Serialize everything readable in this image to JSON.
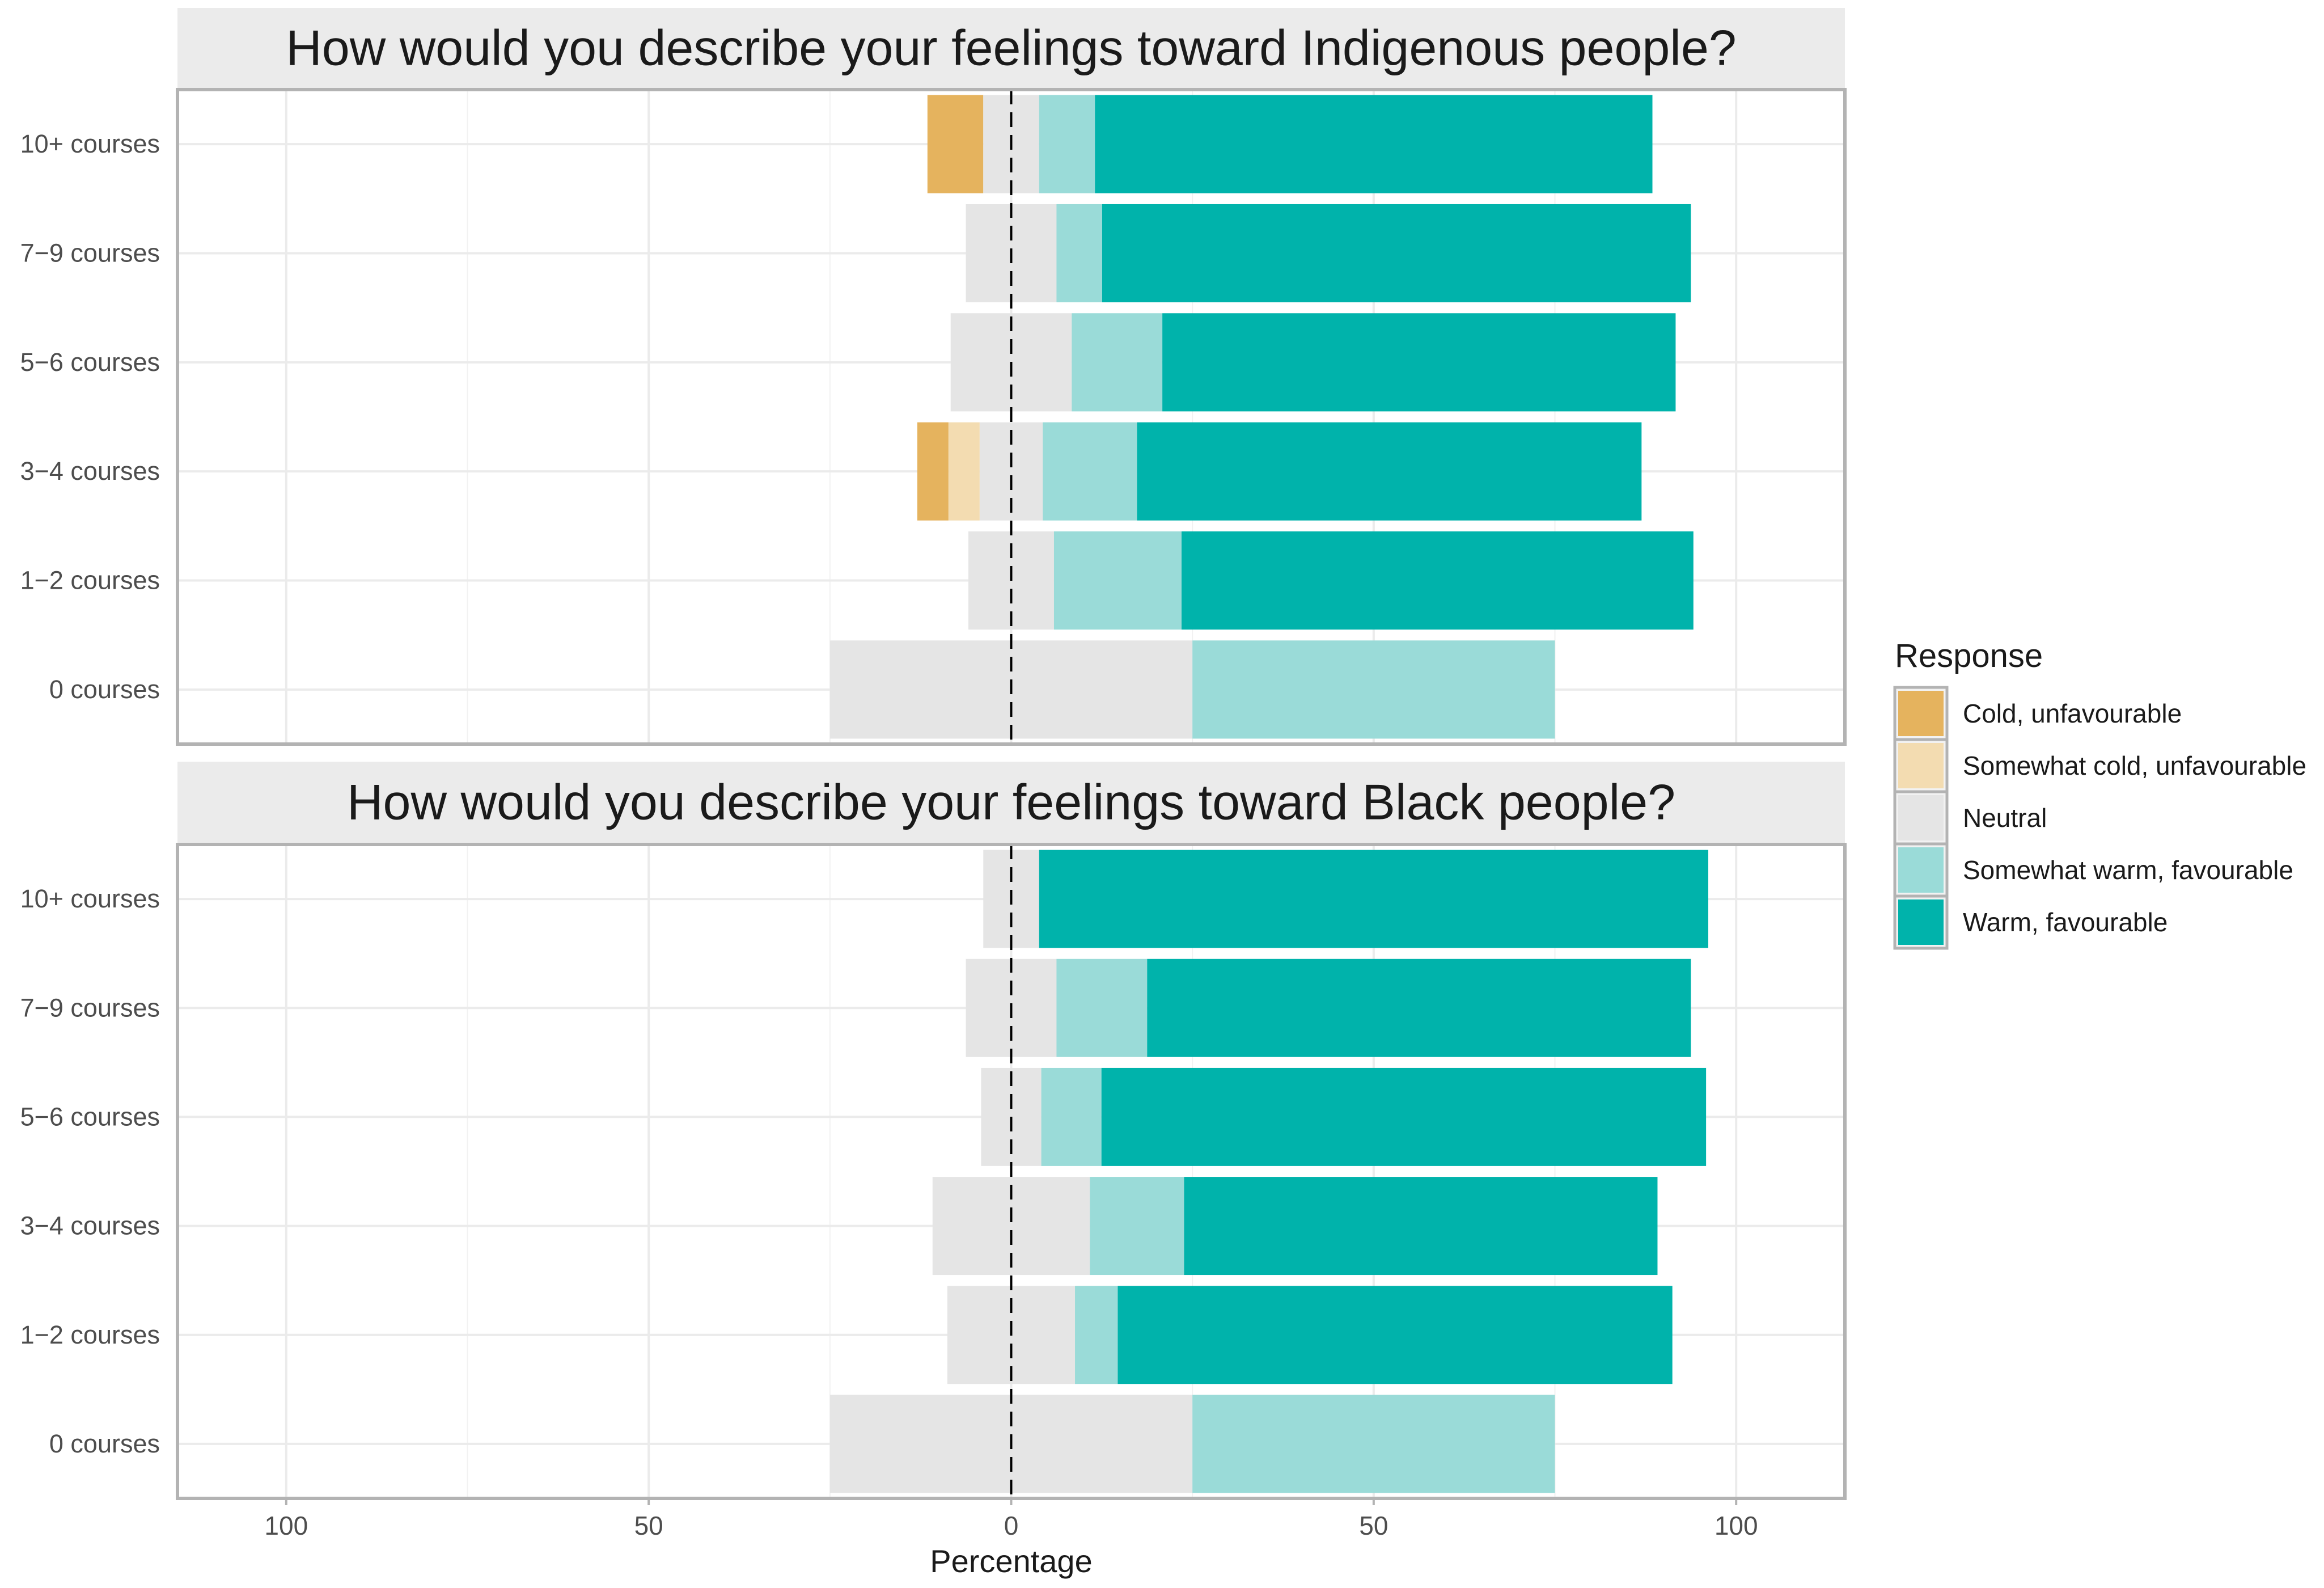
{
  "chart_data": {
    "type": "bar",
    "orientation": "horizontal",
    "stacked": "diverging",
    "xlabel": "Percentage",
    "xlim": [
      -115,
      115
    ],
    "x_ticks": [
      -100,
      -50,
      0,
      50,
      100
    ],
    "x_tick_labels": [
      "100",
      "50",
      "0",
      "50",
      "100"
    ],
    "grid": true,
    "legend": {
      "title": "Response",
      "placement": "right",
      "entries": [
        {
          "label": "Cold, unfavourable",
          "color": "#E5B35E"
        },
        {
          "label": "Somewhat cold, unfavourable",
          "color": "#F3DCB1"
        },
        {
          "label": "Neutral",
          "color": "#E5E5E5"
        },
        {
          "label": "Somewhat warm, favourable",
          "color": "#9ADBD8"
        },
        {
          "label": "Warm, favourable",
          "color": "#00B3AB"
        }
      ]
    },
    "categories": [
      "10+ courses",
      "7−9 courses",
      "5−6 courses",
      "3−4 courses",
      "1−2 courses",
      "0 courses"
    ],
    "panels": [
      {
        "title": "How would you describe your feelings toward Indigenous people?",
        "series": [
          {
            "name": "Cold, unfavourable",
            "values": [
              7.7,
              0,
              0,
              4.3,
              0,
              0
            ]
          },
          {
            "name": "Somewhat cold, unfavourable",
            "values": [
              0,
              0,
              0,
              4.3,
              0,
              0
            ]
          },
          {
            "name": "Neutral",
            "values": [
              7.7,
              12.5,
              16.7,
              8.7,
              11.8,
              50
            ]
          },
          {
            "name": "Somewhat warm, favourable",
            "values": [
              7.7,
              6.3,
              12.5,
              13.0,
              17.6,
              50
            ]
          },
          {
            "name": "Warm, favourable",
            "values": [
              76.9,
              81.2,
              70.8,
              69.6,
              70.6,
              0
            ]
          }
        ]
      },
      {
        "title": "How would you describe your feelings toward Black people?",
        "series": [
          {
            "name": "Cold, unfavourable",
            "values": [
              0,
              0,
              0,
              0,
              0,
              0
            ]
          },
          {
            "name": "Somewhat cold, unfavourable",
            "values": [
              0,
              0,
              0,
              0,
              0,
              0
            ]
          },
          {
            "name": "Neutral",
            "values": [
              7.7,
              12.5,
              8.3,
              21.7,
              17.6,
              50
            ]
          },
          {
            "name": "Somewhat warm, favourable",
            "values": [
              0,
              12.5,
              8.3,
              13.0,
              5.9,
              50
            ]
          },
          {
            "name": "Warm, favourable",
            "values": [
              92.3,
              75.0,
              83.4,
              65.3,
              76.5,
              0
            ]
          }
        ]
      }
    ]
  }
}
